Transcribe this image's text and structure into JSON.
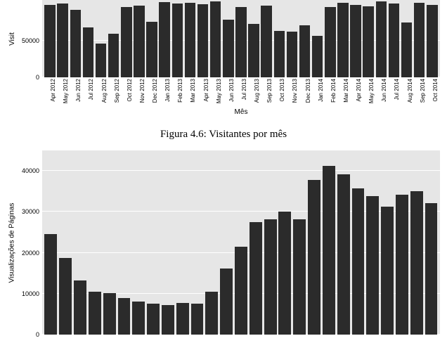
{
  "chart1": {
    "type": "bar",
    "y_title": "Visit",
    "x_title": "Mês",
    "background_color": "#e6e6e6",
    "grid_color": "#ffffff",
    "bar_color": "#2b2b2b",
    "yticks": [
      0,
      50000
    ],
    "ymax": 105000,
    "bar_width": 0.86,
    "categories": [
      "Apr 2012",
      "May 2012",
      "Jun 2012",
      "Jul 2012",
      "Aug 2012",
      "Sep 2012",
      "Oct 2012",
      "Nov 2012",
      "Dec 2012",
      "Jan 2013",
      "Feb 2013",
      "Mar 2013",
      "Apr 2013",
      "May 2013",
      "Jun 2013",
      "Jul 2013",
      "Aug 2013",
      "Sep 2013",
      "Oct 2013",
      "Nov 2013",
      "Dec 2013",
      "Jan 2014",
      "Feb 2014",
      "Mar 2014",
      "Apr 2014",
      "May 2014",
      "Jun 2014",
      "Jul 2014",
      "Aug 2014",
      "Sep 2014",
      "Oct 2014"
    ],
    "values": [
      98000,
      100000,
      92000,
      68000,
      46000,
      59000,
      95000,
      97000,
      75000,
      102000,
      100000,
      101000,
      99000,
      103000,
      78000,
      95000,
      73000,
      97000,
      63000,
      62000,
      71000,
      56000,
      95000,
      101000,
      98000,
      96000,
      103000,
      100000,
      74000,
      101000,
      98000
    ]
  },
  "caption": "Figura 4.6: Visitantes por mês",
  "chart2": {
    "type": "bar",
    "y_title": "Visualizações de Páginas",
    "x_title": "",
    "background_color": "#e6e6e6",
    "grid_color": "#ffffff",
    "bar_color": "#2b2b2b",
    "yticks": [
      0,
      10000,
      20000,
      30000,
      40000
    ],
    "ymax": 45000,
    "bar_width": 0.86,
    "categories_count": 27,
    "values": [
      24500,
      18700,
      13300,
      10400,
      10100,
      9000,
      8100,
      7600,
      7200,
      7800,
      7600,
      10500,
      16200,
      21500,
      27500,
      28100,
      30000,
      28200,
      37800,
      41200,
      39200,
      35800,
      33900,
      31300,
      34200,
      35100,
      32200
    ]
  }
}
